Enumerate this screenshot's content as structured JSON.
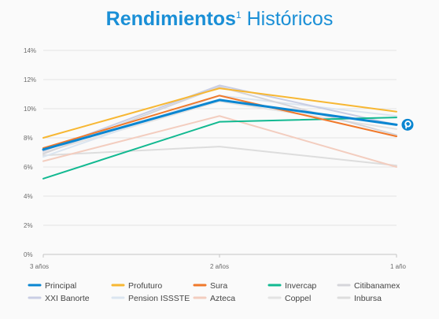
{
  "title": {
    "main": "Rendimientos",
    "superscript": "1",
    "rest": " Históricos"
  },
  "chart_data": {
    "type": "line",
    "x": [
      "3 años",
      "2 años",
      "1 año"
    ],
    "ylim": [
      0,
      14
    ],
    "yticks": [
      0,
      2,
      4,
      6,
      8,
      10,
      12,
      14
    ],
    "ytick_labels": [
      "0%",
      "2%",
      "4%",
      "6%",
      "8%",
      "10%",
      "12%",
      "14%"
    ],
    "grid": true,
    "legend_position": "bottom",
    "highlight_series": "Principal",
    "highlight_marker": "principal-logo-icon",
    "series": [
      {
        "name": "Principal",
        "color": "#0a86d1",
        "values": [
          7.2,
          10.6,
          8.9
        ]
      },
      {
        "name": "Profuturo",
        "color": "#f7b733",
        "values": [
          8.0,
          11.4,
          9.8
        ]
      },
      {
        "name": "Sura",
        "color": "#f0792b",
        "values": [
          7.3,
          10.9,
          8.1
        ]
      },
      {
        "name": "Invercap",
        "color": "#12b991",
        "values": [
          5.2,
          9.1,
          9.4
        ]
      },
      {
        "name": "Citibanamex",
        "color": "#d5d5da",
        "values": [
          6.9,
          11.5,
          8.2
        ]
      },
      {
        "name": "XXI Banorte",
        "color": "#c9cee4",
        "values": [
          7.1,
          11.6,
          8.9
        ]
      },
      {
        "name": "Pension ISSSTE",
        "color": "#dbe5f0",
        "values": [
          6.7,
          10.9,
          9.5
        ]
      },
      {
        "name": "Azteca",
        "color": "#f3cdbf",
        "values": [
          6.4,
          9.5,
          6.0
        ]
      },
      {
        "name": "Coppel",
        "color": "#e3e3e3",
        "values": [
          7.0,
          10.5,
          8.6
        ]
      },
      {
        "name": "Inbursa",
        "color": "#dddddd",
        "values": [
          6.8,
          7.4,
          6.1
        ]
      }
    ]
  }
}
